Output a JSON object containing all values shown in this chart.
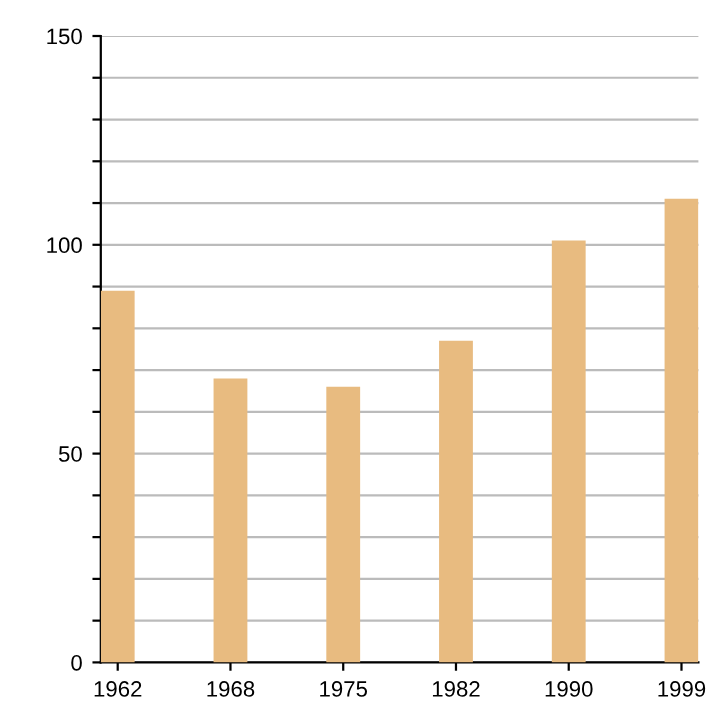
{
  "chart_data": {
    "type": "bar",
    "categories": [
      "1962",
      "1968",
      "1975",
      "1982",
      "1990",
      "1999"
    ],
    "values": [
      89,
      68,
      66,
      77,
      101,
      111
    ],
    "color": "#e8bb80",
    "ylim": [
      0,
      150
    ],
    "yticks": [
      0,
      {
        "value": 10,
        "label": null
      },
      {
        "value": 20,
        "label": null
      },
      {
        "value": 30,
        "label": null
      },
      {
        "value": 40,
        "label": null
      },
      50,
      {
        "value": 60,
        "label": null
      },
      {
        "value": 70,
        "label": null
      },
      {
        "value": 80,
        "label": null
      },
      {
        "value": 90,
        "label": null
      },
      100,
      {
        "value": 110,
        "label": null
      },
      {
        "value": 120,
        "label": null
      },
      {
        "value": 130,
        "label": null
      },
      {
        "value": 140,
        "label": null
      },
      150
    ],
    "grid": "y"
  }
}
